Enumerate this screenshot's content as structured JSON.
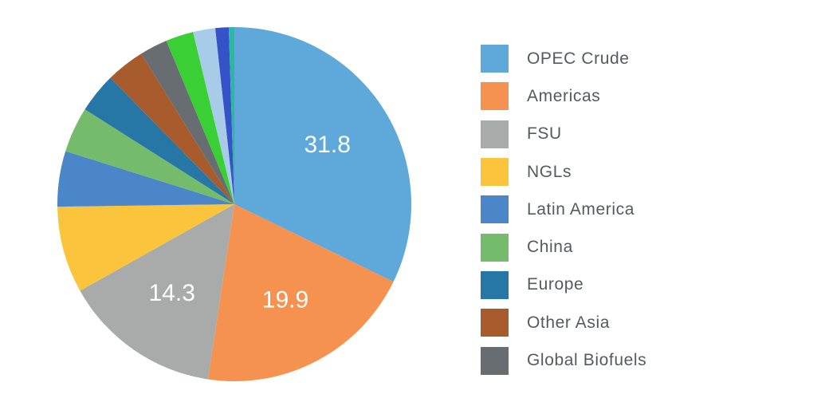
{
  "chart_data": {
    "type": "pie",
    "title": "",
    "slices": [
      {
        "name": "OPEC Crude",
        "value": 31.8,
        "color": "#5fa8da",
        "label": "31.8"
      },
      {
        "name": "Americas",
        "value": 19.9,
        "color": "#f5924f",
        "label": "19.9"
      },
      {
        "name": "FSU",
        "value": 14.3,
        "color": "#a9abaa",
        "label": "14.3"
      },
      {
        "name": "NGLs",
        "value": 7.8,
        "color": "#fbc43d",
        "label": ""
      },
      {
        "name": "Latin America",
        "value": 5.0,
        "color": "#4a86c8",
        "label": ""
      },
      {
        "name": "China",
        "value": 4.1,
        "color": "#74bc6c",
        "label": ""
      },
      {
        "name": "Europe",
        "value": 3.6,
        "color": "#2677a6",
        "label": ""
      },
      {
        "name": "Other Asia",
        "value": 3.5,
        "color": "#a85c2e",
        "label": ""
      },
      {
        "name": "Global Biofuels",
        "value": 2.5,
        "color": "#686d71",
        "label": ""
      },
      {
        "name": "",
        "value": 2.5,
        "color": "#39cf35",
        "label": ""
      },
      {
        "name": "",
        "value": 2.0,
        "color": "#a8cbe8",
        "label": ""
      },
      {
        "name": "",
        "value": 1.2,
        "color": "#3552c9",
        "label": ""
      },
      {
        "name": "",
        "value": 0.5,
        "color": "#2bb7a0",
        "label": ""
      }
    ],
    "legend": {
      "placement": "right",
      "entries": [
        "OPEC Crude",
        "Americas",
        "FSU",
        "NGLs",
        "Latin America",
        "China",
        "Europe",
        "Other Asia",
        "Global Biofuels"
      ]
    },
    "start_angle": "12 o'clock",
    "direction": "clockwise"
  }
}
